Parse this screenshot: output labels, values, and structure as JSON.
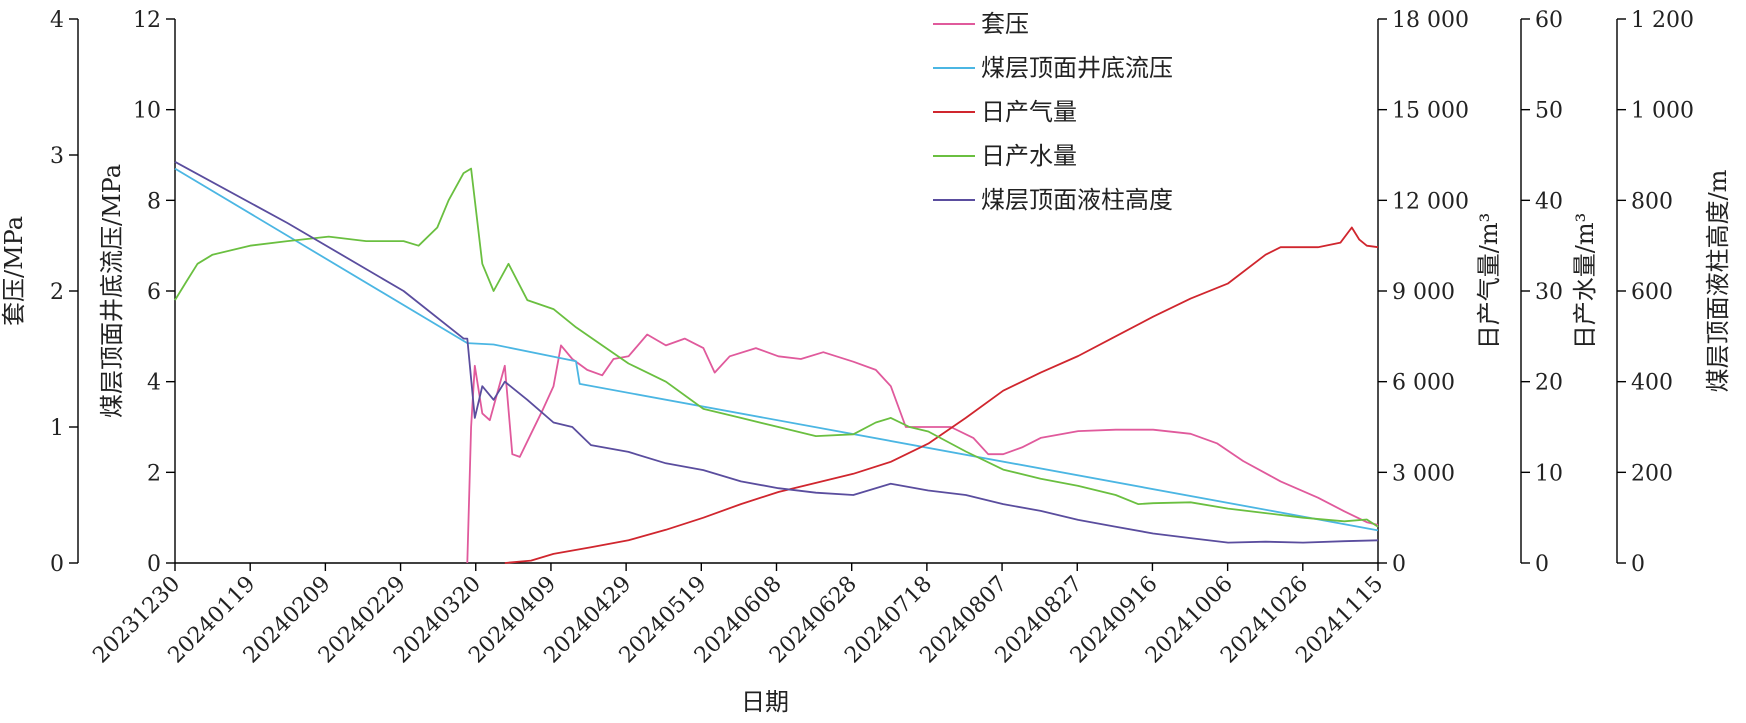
{
  "chart_data": {
    "type": "line",
    "xlabel": "日期",
    "x_ticks": [
      "20231230",
      "20240119",
      "20240209",
      "20240229",
      "20240320",
      "20240409",
      "20240429",
      "20240519",
      "20240608",
      "20240628",
      "20240718",
      "20240807",
      "20240827",
      "20240916",
      "20241006",
      "20241026",
      "20241115"
    ],
    "x_range": [
      "2023-12-30",
      "2024-11-15"
    ],
    "axes": [
      {
        "key": "casing",
        "label": "套压/MPa",
        "range": [
          0,
          4
        ],
        "ticks": [
          "0",
          "1",
          "2",
          "3",
          "4"
        ],
        "side": "left"
      },
      {
        "key": "bhp",
        "label": "煤层顶面井底流压/MPa",
        "range": [
          0,
          12
        ],
        "ticks": [
          "0",
          "2",
          "4",
          "6",
          "8",
          "10",
          "12"
        ],
        "side": "left"
      },
      {
        "key": "gas",
        "label": "日产气量/m³",
        "range": [
          0,
          18000
        ],
        "ticks": [
          "0",
          "3 000",
          "6 000",
          "9 000",
          "12 000",
          "15 000",
          "18 000"
        ],
        "side": "right"
      },
      {
        "key": "water",
        "label": "日产水量/m³",
        "range": [
          0,
          60
        ],
        "ticks": [
          "0",
          "10",
          "20",
          "30",
          "40",
          "50",
          "60"
        ],
        "side": "right"
      },
      {
        "key": "height",
        "label": "煤层顶面液柱高度/m",
        "range": [
          0,
          1200
        ],
        "ticks": [
          "0",
          "200",
          "400",
          "600",
          "800",
          "1 000",
          "1 200"
        ],
        "side": "right"
      }
    ],
    "legend_position": "top-right",
    "series": [
      {
        "name": "套压",
        "axis": "casing",
        "color": "#e05a9c",
        "points": [
          [
            "2024-03-17",
            0
          ],
          [
            "2024-03-18",
            1.0
          ],
          [
            "2024-03-19",
            1.45
          ],
          [
            "2024-03-21",
            1.1
          ],
          [
            "2024-03-23",
            1.05
          ],
          [
            "2024-03-25",
            1.25
          ],
          [
            "2024-03-27",
            1.45
          ],
          [
            "2024-03-29",
            0.8
          ],
          [
            "2024-03-31",
            0.78
          ],
          [
            "2024-04-03",
            0.95
          ],
          [
            "2024-04-06",
            1.12
          ],
          [
            "2024-04-09",
            1.3
          ],
          [
            "2024-04-11",
            1.6
          ],
          [
            "2024-04-14",
            1.5
          ],
          [
            "2024-04-18",
            1.42
          ],
          [
            "2024-04-22",
            1.38
          ],
          [
            "2024-04-25",
            1.5
          ],
          [
            "2024-04-29",
            1.52
          ],
          [
            "2024-05-04",
            1.68
          ],
          [
            "2024-05-09",
            1.6
          ],
          [
            "2024-05-14",
            1.65
          ],
          [
            "2024-05-19",
            1.58
          ],
          [
            "2024-05-22",
            1.4
          ],
          [
            "2024-05-26",
            1.52
          ],
          [
            "2024-06-02",
            1.58
          ],
          [
            "2024-06-08",
            1.52
          ],
          [
            "2024-06-14",
            1.5
          ],
          [
            "2024-06-20",
            1.55
          ],
          [
            "2024-06-28",
            1.48
          ],
          [
            "2024-07-04",
            1.42
          ],
          [
            "2024-07-08",
            1.3
          ],
          [
            "2024-07-12",
            1.0
          ],
          [
            "2024-07-18",
            1.0
          ],
          [
            "2024-07-24",
            1.0
          ],
          [
            "2024-07-30",
            0.92
          ],
          [
            "2024-08-03",
            0.8
          ],
          [
            "2024-08-07",
            0.8
          ],
          [
            "2024-08-12",
            0.85
          ],
          [
            "2024-08-17",
            0.92
          ],
          [
            "2024-08-27",
            0.97
          ],
          [
            "2024-09-06",
            0.98
          ],
          [
            "2024-09-16",
            0.98
          ],
          [
            "2024-09-26",
            0.95
          ],
          [
            "2024-10-03",
            0.88
          ],
          [
            "2024-10-10",
            0.75
          ],
          [
            "2024-10-20",
            0.6
          ],
          [
            "2024-10-30",
            0.48
          ],
          [
            "2024-11-06",
            0.38
          ],
          [
            "2024-11-12",
            0.3
          ],
          [
            "2024-11-15",
            0.28
          ]
        ]
      },
      {
        "name": "煤层顶面井底流压",
        "axis": "bhp",
        "color": "#4bb6e3",
        "points": [
          [
            "2023-12-30",
            8.7
          ],
          [
            "2024-03-17",
            4.85
          ],
          [
            "2024-03-24",
            4.82
          ],
          [
            "2024-04-15",
            4.45
          ],
          [
            "2024-04-16",
            3.95
          ],
          [
            "2024-11-15",
            0.72
          ]
        ]
      },
      {
        "name": "日产气量",
        "axis": "gas",
        "color": "#d0262e",
        "points": [
          [
            "2024-03-27",
            0
          ],
          [
            "2024-04-03",
            80
          ],
          [
            "2024-04-09",
            300
          ],
          [
            "2024-04-19",
            520
          ],
          [
            "2024-04-29",
            750
          ],
          [
            "2024-05-09",
            1100
          ],
          [
            "2024-05-19",
            1500
          ],
          [
            "2024-05-29",
            1950
          ],
          [
            "2024-06-08",
            2350
          ],
          [
            "2024-06-18",
            2650
          ],
          [
            "2024-06-28",
            2950
          ],
          [
            "2024-07-08",
            3350
          ],
          [
            "2024-07-18",
            3950
          ],
          [
            "2024-07-28",
            4800
          ],
          [
            "2024-08-07",
            5700
          ],
          [
            "2024-08-17",
            6300
          ],
          [
            "2024-08-27",
            6850
          ],
          [
            "2024-09-06",
            7500
          ],
          [
            "2024-09-16",
            8150
          ],
          [
            "2024-09-26",
            8750
          ],
          [
            "2024-10-06",
            9250
          ],
          [
            "2024-10-16",
            10200
          ],
          [
            "2024-10-20",
            10450
          ],
          [
            "2024-10-30",
            10450
          ],
          [
            "2024-11-05",
            10600
          ],
          [
            "2024-11-08",
            11100
          ],
          [
            "2024-11-10",
            10700
          ],
          [
            "2024-11-12",
            10500
          ],
          [
            "2024-11-15",
            10450
          ]
        ]
      },
      {
        "name": "日产水量",
        "axis": "water",
        "color": "#6abf40",
        "points": [
          [
            "2023-12-30",
            29
          ],
          [
            "2024-01-02",
            31
          ],
          [
            "2024-01-05",
            33
          ],
          [
            "2024-01-09",
            34
          ],
          [
            "2024-01-19",
            35
          ],
          [
            "2024-01-29",
            35.5
          ],
          [
            "2024-02-09",
            36
          ],
          [
            "2024-02-19",
            35.5
          ],
          [
            "2024-02-29",
            35.5
          ],
          [
            "2024-03-04",
            35
          ],
          [
            "2024-03-09",
            37
          ],
          [
            "2024-03-12",
            40
          ],
          [
            "2024-03-16",
            43
          ],
          [
            "2024-03-18",
            43.5
          ],
          [
            "2024-03-21",
            33
          ],
          [
            "2024-03-24",
            30
          ],
          [
            "2024-03-28",
            33
          ],
          [
            "2024-04-02",
            29
          ],
          [
            "2024-04-09",
            28
          ],
          [
            "2024-04-15",
            26
          ],
          [
            "2024-04-22",
            24
          ],
          [
            "2024-04-29",
            22
          ],
          [
            "2024-05-09",
            20
          ],
          [
            "2024-05-19",
            17
          ],
          [
            "2024-05-29",
            16
          ],
          [
            "2024-06-08",
            15
          ],
          [
            "2024-06-18",
            14
          ],
          [
            "2024-06-28",
            14.2
          ],
          [
            "2024-07-04",
            15.5
          ],
          [
            "2024-07-08",
            16
          ],
          [
            "2024-07-13",
            15
          ],
          [
            "2024-07-18",
            14.5
          ],
          [
            "2024-07-28",
            12.3
          ],
          [
            "2024-08-07",
            10.3
          ],
          [
            "2024-08-17",
            9.3
          ],
          [
            "2024-08-27",
            8.5
          ],
          [
            "2024-09-06",
            7.5
          ],
          [
            "2024-09-12",
            6.5
          ],
          [
            "2024-09-16",
            6.6
          ],
          [
            "2024-09-26",
            6.7
          ],
          [
            "2024-10-06",
            6.0
          ],
          [
            "2024-10-16",
            5.5
          ],
          [
            "2024-10-26",
            5.0
          ],
          [
            "2024-11-06",
            4.6
          ],
          [
            "2024-11-12",
            4.8
          ],
          [
            "2024-11-15",
            4.0
          ]
        ]
      },
      {
        "name": "煤层顶面液柱高度",
        "axis": "height",
        "color": "#5a4d9e",
        "points": [
          [
            "2023-12-30",
            885
          ],
          [
            "2024-01-29",
            750
          ],
          [
            "2024-02-29",
            600
          ],
          [
            "2024-03-16",
            495
          ],
          [
            "2024-03-17",
            495
          ],
          [
            "2024-03-19",
            320
          ],
          [
            "2024-03-21",
            390
          ],
          [
            "2024-03-24",
            360
          ],
          [
            "2024-03-27",
            400
          ],
          [
            "2024-04-02",
            360
          ],
          [
            "2024-04-09",
            310
          ],
          [
            "2024-04-14",
            300
          ],
          [
            "2024-04-19",
            260
          ],
          [
            "2024-04-29",
            245
          ],
          [
            "2024-05-09",
            220
          ],
          [
            "2024-05-19",
            205
          ],
          [
            "2024-05-29",
            180
          ],
          [
            "2024-06-08",
            165
          ],
          [
            "2024-06-18",
            155
          ],
          [
            "2024-06-28",
            150
          ],
          [
            "2024-07-08",
            175
          ],
          [
            "2024-07-18",
            160
          ],
          [
            "2024-07-28",
            150
          ],
          [
            "2024-08-07",
            130
          ],
          [
            "2024-08-17",
            115
          ],
          [
            "2024-08-27",
            95
          ],
          [
            "2024-09-06",
            80
          ],
          [
            "2024-09-16",
            65
          ],
          [
            "2024-09-26",
            55
          ],
          [
            "2024-10-06",
            45
          ],
          [
            "2024-10-16",
            47
          ],
          [
            "2024-10-26",
            45
          ],
          [
            "2024-11-06",
            48
          ],
          [
            "2024-11-15",
            50
          ]
        ]
      }
    ]
  }
}
